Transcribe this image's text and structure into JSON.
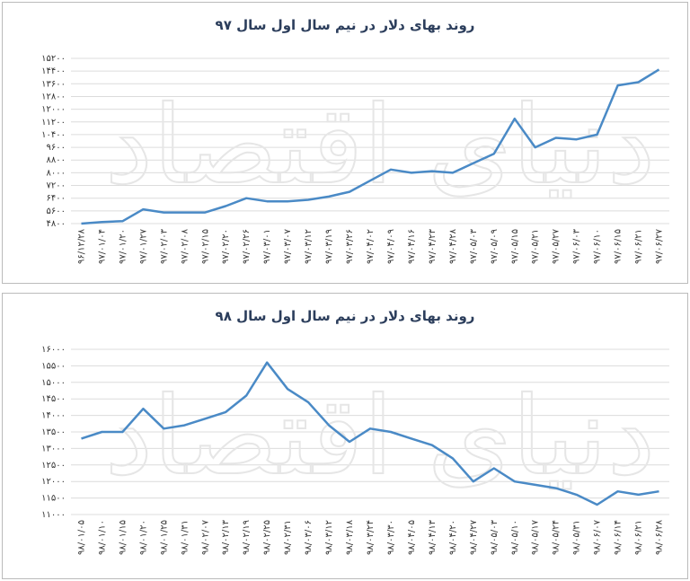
{
  "chart_data": [
    {
      "type": "line",
      "title": "روند بهای دلار در نیم سال اول سال ۹۷",
      "watermark": "دنیای اقتصاد",
      "color": "#4a8ac6",
      "grid": true,
      "categories": [
        "۹۶/۱۲/۲۸",
        "۹۷/۰۱/۰۴",
        "۹۷/۰۱/۲۰",
        "۹۷/۰۱/۲۷",
        "۹۷/۰۲/۰۳",
        "۹۷/۰۲/۰۸",
        "۹۷/۰۲/۱۵",
        "۹۷/۰۲/۲۰",
        "۹۷/۰۲/۲۶",
        "۹۷/۰۳/۰۱",
        "۹۷/۰۳/۰۷",
        "۹۷/۰۳/۱۲",
        "۹۷/۰۳/۱۹",
        "۹۷/۰۳/۲۶",
        "۹۷/۰۴/۰۲",
        "۹۷/۰۴/۰۹",
        "۹۷/۰۴/۱۶",
        "۹۷/۰۴/۲۳",
        "۹۷/۰۴/۲۸",
        "۹۷/۰۵/۰۳",
        "۹۷/۰۵/۰۹",
        "۹۷/۰۵/۱۵",
        "۹۷/۰۵/۲۱",
        "۹۷/۰۵/۲۷",
        "۹۷/۰۶/۰۳",
        "۹۷/۰۶/۱۰",
        "۹۷/۰۶/۱۵",
        "۹۷/۰۶/۲۱",
        "۹۷/۰۶/۲۷"
      ],
      "values": [
        4800,
        4900,
        4950,
        5700,
        5500,
        5500,
        5500,
        5900,
        6400,
        6200,
        6200,
        6300,
        6500,
        6800,
        7500,
        8200,
        8000,
        8100,
        8000,
        8600,
        9200,
        11400,
        9600,
        10200,
        10100,
        10400,
        13500,
        13700,
        14500
      ],
      "ylim": [
        4800,
        15200
      ],
      "yticks": [
        {
          "value": 4800,
          "label": "۴۸۰۰"
        },
        {
          "value": 5600,
          "label": "۵۶۰۰"
        },
        {
          "value": 6400,
          "label": "۶۴۰۰"
        },
        {
          "value": 7200,
          "label": "۷۲۰۰"
        },
        {
          "value": 8000,
          "label": "۸۰۰۰"
        },
        {
          "value": 8800,
          "label": "۸۸۰۰"
        },
        {
          "value": 9600,
          "label": "۹۶۰۰"
        },
        {
          "value": 10400,
          "label": "۱۰۴۰۰"
        },
        {
          "value": 11200,
          "label": "۱۱۲۰۰"
        },
        {
          "value": 12000,
          "label": "۱۲۰۰۰"
        },
        {
          "value": 12800,
          "label": "۱۲۸۰۰"
        },
        {
          "value": 13600,
          "label": "۱۳۶۰۰"
        },
        {
          "value": 14400,
          "label": "۱۴۴۰۰"
        },
        {
          "value": 15200,
          "label": "۱۵۲۰۰"
        }
      ]
    },
    {
      "type": "line",
      "title": "روند بهای دلار در نیم سال اول سال ۹۸",
      "watermark": "دنیای اقتصاد",
      "color": "#4a8ac6",
      "grid": true,
      "categories": [
        "۹۸/۰۱/۰۵",
        "۹۸/۰۱/۱۰",
        "۹۸/۰۱/۱۵",
        "۹۸/۰۱/۲۰",
        "۹۸/۰۱/۲۵",
        "۹۸/۰۱/۳۱",
        "۹۸/۰۲/۰۷",
        "۹۸/۰۲/۱۳",
        "۹۸/۰۲/۱۹",
        "۹۸/۰۲/۲۵",
        "۹۸/۰۲/۳۱",
        "۹۸/۰۳/۰۶",
        "۹۸/۰۳/۱۲",
        "۹۸/۰۳/۱۸",
        "۹۸/۰۳/۲۴",
        "۹۸/۰۳/۳۰",
        "۹۸/۰۴/۰۵",
        "۹۸/۰۴/۱۳",
        "۹۸/۰۴/۲۰",
        "۹۸/۰۴/۲۷",
        "۹۸/۰۵/۰۳",
        "۹۸/۰۵/۱۰",
        "۹۸/۰۵/۱۷",
        "۹۸/۰۵/۲۴",
        "۹۸/۰۵/۳۱",
        "۹۸/۰۶/۰۷",
        "۹۸/۰۶/۱۴",
        "۹۸/۰۶/۲۱",
        "۹۸/۰۶/۲۸"
      ],
      "values": [
        13300,
        13500,
        13500,
        14200,
        13600,
        13700,
        13900,
        14100,
        14600,
        15600,
        14800,
        14400,
        13700,
        13200,
        13600,
        13500,
        13300,
        13100,
        12700,
        12000,
        12400,
        12000,
        11900,
        11800,
        11600,
        11300,
        11700,
        11600,
        11700
      ],
      "ylim": [
        11000,
        16000
      ],
      "yticks": [
        {
          "value": 11000,
          "label": "۱۱۰۰۰"
        },
        {
          "value": 11500,
          "label": "۱۱۵۰۰"
        },
        {
          "value": 12000,
          "label": "۱۲۰۰۰"
        },
        {
          "value": 12500,
          "label": "۱۲۵۰۰"
        },
        {
          "value": 13000,
          "label": "۱۳۰۰۰"
        },
        {
          "value": 13500,
          "label": "۱۳۵۰۰"
        },
        {
          "value": 14000,
          "label": "۱۴۰۰۰"
        },
        {
          "value": 14500,
          "label": "۱۴۵۰۰"
        },
        {
          "value": 15000,
          "label": "۱۵۰۰۰"
        },
        {
          "value": 15500,
          "label": "۱۵۵۰۰"
        },
        {
          "value": 16000,
          "label": "۱۶۰۰۰"
        }
      ]
    }
  ]
}
